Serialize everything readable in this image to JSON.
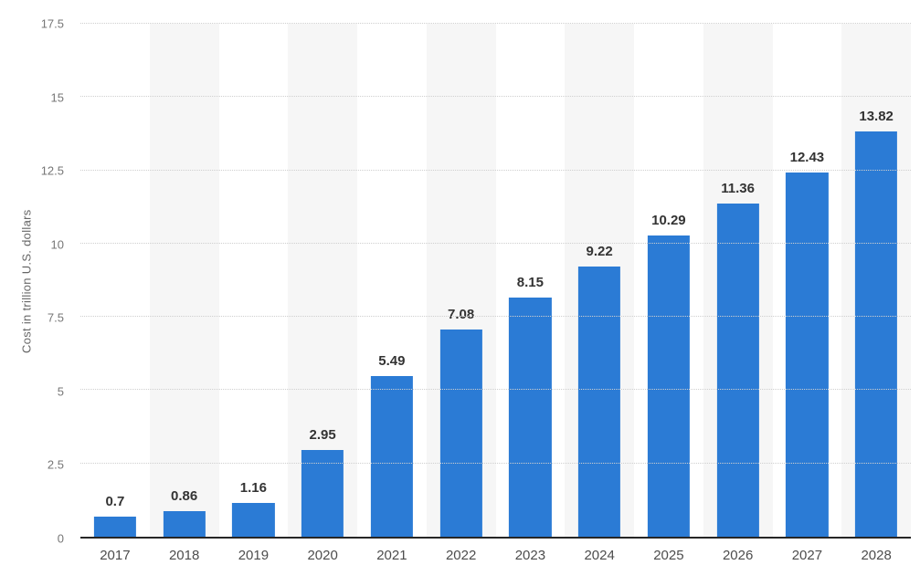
{
  "chart_data": {
    "type": "bar",
    "title": "",
    "ylabel": "Cost in trillion U.S. dollars",
    "xlabel": "",
    "categories": [
      "2017",
      "2018",
      "2019",
      "2020",
      "2021",
      "2022",
      "2023",
      "2024",
      "2025",
      "2026",
      "2027",
      "2028"
    ],
    "values": [
      0.7,
      0.86,
      1.16,
      2.95,
      5.49,
      7.08,
      8.15,
      9.22,
      10.29,
      11.36,
      12.43,
      13.82
    ],
    "value_labels": [
      "0.7",
      "0.86",
      "1.16",
      "2.95",
      "5.49",
      "7.08",
      "8.15",
      "9.22",
      "10.29",
      "11.36",
      "12.43",
      "13.82"
    ],
    "ylim": [
      0,
      17.5
    ],
    "yticks": [
      0,
      2.5,
      5,
      7.5,
      10,
      12.5,
      15,
      17.5
    ],
    "ytick_labels": [
      "0",
      "2.5",
      "5",
      "7.5",
      "10",
      "12.5",
      "15",
      "17.5"
    ],
    "grid": "horizontal-dotted",
    "legend_position": "none",
    "colors": {
      "bar": "#2b7bd5",
      "band": "#f6f6f6",
      "gridline": "#cfcfcf",
      "axis_line": "#262626",
      "value_label": "#333333",
      "tick_label": "#767676",
      "x_label": "#4d4d4d",
      "y_title": "#666666"
    }
  }
}
